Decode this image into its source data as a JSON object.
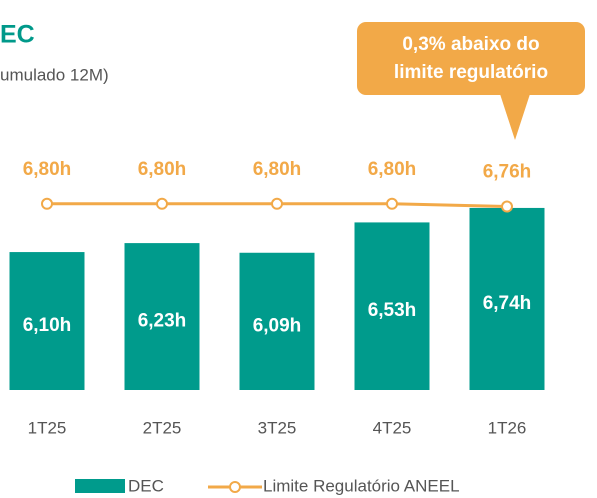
{
  "chart_data": {
    "type": "bar_line",
    "title": "EC",
    "subtitle": "umulado 12M)",
    "annotation": [
      "0,3% abaixo do",
      "limite regulatório"
    ],
    "categories": [
      "1T25",
      "2T25",
      "3T25",
      "4T25",
      "1T26"
    ],
    "series": [
      {
        "name": "DEC",
        "type": "bar",
        "color": "#009b8c",
        "values": [
          6.1,
          6.23,
          6.09,
          6.53,
          6.74
        ],
        "value_labels": [
          "6,10h",
          "6,23h",
          "6,09h",
          "6,53h",
          "6,74h"
        ]
      },
      {
        "name": "Limite Regulatório ANEEL",
        "type": "line",
        "color": "#f2a948",
        "values": [
          6.8,
          6.8,
          6.8,
          6.8,
          6.76
        ],
        "value_labels": [
          "6,80h",
          "6,80h",
          "6,80h",
          "6,80h",
          "6,76h"
        ]
      }
    ],
    "ylim": [
      4.1,
      7.0
    ]
  }
}
